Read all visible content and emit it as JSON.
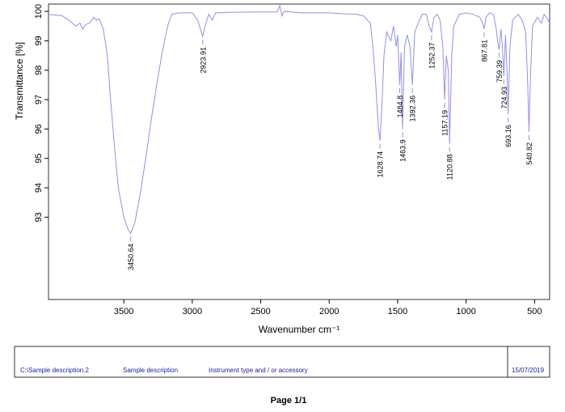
{
  "chart_data": {
    "type": "line",
    "xlabel": "Wavenumber  cm⁻¹",
    "ylabel": "Transmittance [%]",
    "xlim": [
      4050,
      390
    ],
    "ylim": [
      90.2,
      100.25
    ],
    "xticks": [
      3500,
      3000,
      2500,
      2000,
      1500,
      1000,
      500
    ],
    "yticks": [
      93,
      94,
      95,
      96,
      97,
      98,
      99,
      100
    ],
    "color": "#9090ee",
    "x": [
      4050,
      3950,
      3900,
      3850,
      3820,
      3800,
      3780,
      3750,
      3720,
      3700,
      3680,
      3650,
      3620,
      3600,
      3570,
      3540,
      3500,
      3470,
      3450.64,
      3420,
      3380,
      3340,
      3300,
      3260,
      3220,
      3180,
      3150,
      3100,
      3000,
      2960,
      2923.91,
      2900,
      2880,
      2853,
      2830,
      2700,
      2500,
      2380,
      2360,
      2345,
      2330,
      2200,
      2000,
      1900,
      1800,
      1750,
      1700,
      1680,
      1660,
      1640,
      1628.74,
      1615,
      1600,
      1580,
      1550,
      1530,
      1510,
      1500,
      1484.8,
      1475,
      1463.9,
      1450,
      1430,
      1410,
      1392.36,
      1375,
      1350,
      1320,
      1290,
      1270,
      1252.37,
      1235,
      1210,
      1190,
      1170,
      1157.19,
      1145,
      1130,
      1120.88,
      1105,
      1090,
      1050,
      1000,
      950,
      900,
      880,
      867.81,
      855,
      830,
      800,
      780,
      770,
      759.39,
      745,
      735,
      724.93,
      712,
      700,
      693.16,
      680,
      660,
      620,
      590,
      565,
      550,
      540.82,
      530,
      515,
      480,
      450,
      430,
      400,
      390
    ],
    "values": [
      99.9,
      99.85,
      99.7,
      99.5,
      99.6,
      99.4,
      99.55,
      99.6,
      99.8,
      99.7,
      99.75,
      99.4,
      98.5,
      97.2,
      95.5,
      94.0,
      93.0,
      92.6,
      92.45,
      92.8,
      93.8,
      95.0,
      96.3,
      97.5,
      98.6,
      99.5,
      99.9,
      99.95,
      99.95,
      99.7,
      99.15,
      99.6,
      99.9,
      99.7,
      99.95,
      99.97,
      99.98,
      99.98,
      100.2,
      99.85,
      100.0,
      99.95,
      99.95,
      99.92,
      99.9,
      99.85,
      99.6,
      98.8,
      97.5,
      96.0,
      95.6,
      96.8,
      98.5,
      99.3,
      99.0,
      99.5,
      98.8,
      99.2,
      97.5,
      98.6,
      96.0,
      98.8,
      99.2,
      98.8,
      97.5,
      99.3,
      99.6,
      99.9,
      99.9,
      99.5,
      99.3,
      99.8,
      99.9,
      99.7,
      98.8,
      97.0,
      98.5,
      98.0,
      95.5,
      98.5,
      99.5,
      99.9,
      99.95,
      99.9,
      99.8,
      99.6,
      99.4,
      99.8,
      99.95,
      99.9,
      99.4,
      99.0,
      98.7,
      99.4,
      98.8,
      97.8,
      99.2,
      97.8,
      96.5,
      98.8,
      99.7,
      99.9,
      99.7,
      99.3,
      97.5,
      95.9,
      97.8,
      99.5,
      99.8,
      99.6,
      99.9,
      99.7,
      99.6
    ],
    "peaks": [
      3450.64,
      2923.91,
      1628.74,
      1484.8,
      1463.9,
      1392.36,
      1252.37,
      1157.19,
      1120.88,
      867.81,
      759.39,
      724.93,
      693.16,
      540.82
    ]
  },
  "footer": {
    "file": "C:\\Sample description.2",
    "sample": "Sample description",
    "instrument": "Instrument type and / or accessory",
    "date": "15/07/2019",
    "page": "Page 1/1"
  }
}
